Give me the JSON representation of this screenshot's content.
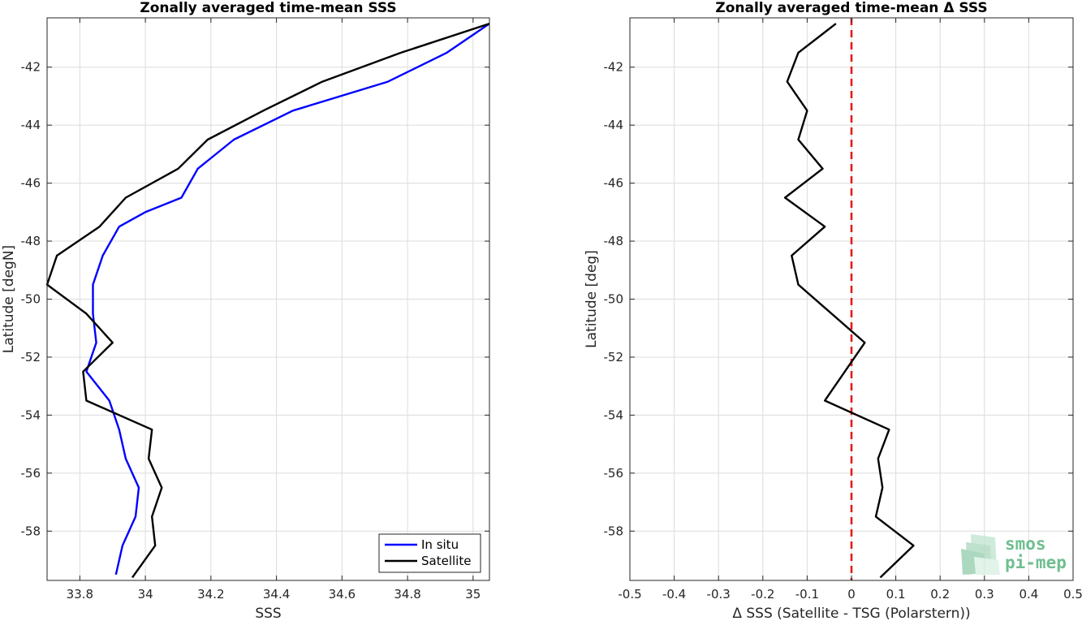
{
  "chart_data": [
    {
      "type": "line",
      "title": "Zonally averaged time-mean SSS",
      "xlabel": "SSS",
      "ylabel": "Latitude [degN]",
      "xlim": [
        33.7,
        35.05
      ],
      "ylim": [
        -59.7,
        -40.3
      ],
      "xticks": [
        33.8,
        34.0,
        34.2,
        34.4,
        34.6,
        34.8,
        35.0
      ],
      "xtick_labels": [
        "33.8",
        "34",
        "34.2",
        "34.4",
        "34.6",
        "34.8",
        "35"
      ],
      "yticks": [
        -42,
        -44,
        -46,
        -48,
        -50,
        -52,
        -54,
        -56,
        -58
      ],
      "ytick_labels": [
        "-42",
        "-44",
        "-46",
        "-48",
        "-50",
        "-52",
        "-54",
        "-56",
        "-58"
      ],
      "grid": true,
      "legend": {
        "location": "bottom-right",
        "entries": [
          "In situ",
          "Satellite"
        ]
      },
      "series": [
        {
          "name": "In situ",
          "color": "#0000ff",
          "points": [
            [
              33.91,
              -59.5
            ],
            [
              33.93,
              -58.5
            ],
            [
              33.97,
              -57.5
            ],
            [
              33.98,
              -56.5
            ],
            [
              33.94,
              -55.5
            ],
            [
              33.92,
              -54.5
            ],
            [
              33.89,
              -53.5
            ],
            [
              33.82,
              -52.5
            ],
            [
              33.85,
              -51.5
            ],
            [
              33.84,
              -50.5
            ],
            [
              33.84,
              -49.5
            ],
            [
              33.87,
              -48.5
            ],
            [
              33.92,
              -47.5
            ],
            [
              34.0,
              -47.0
            ],
            [
              34.11,
              -46.5
            ],
            [
              34.16,
              -45.5
            ],
            [
              34.27,
              -44.5
            ],
            [
              34.45,
              -43.5
            ],
            [
              34.74,
              -42.5
            ],
            [
              34.92,
              -41.5
            ],
            [
              35.05,
              -40.5
            ]
          ]
        },
        {
          "name": "Satellite",
          "color": "#000000",
          "points": [
            [
              33.96,
              -59.6
            ],
            [
              34.03,
              -58.5
            ],
            [
              34.02,
              -57.5
            ],
            [
              34.05,
              -56.5
            ],
            [
              34.01,
              -55.5
            ],
            [
              34.02,
              -54.5
            ],
            [
              33.82,
              -53.5
            ],
            [
              33.81,
              -52.5
            ],
            [
              33.9,
              -51.5
            ],
            [
              33.82,
              -50.5
            ],
            [
              33.7,
              -49.5
            ],
            [
              33.73,
              -48.5
            ],
            [
              33.86,
              -47.5
            ],
            [
              33.94,
              -46.5
            ],
            [
              34.1,
              -45.5
            ],
            [
              34.19,
              -44.5
            ],
            [
              34.36,
              -43.5
            ],
            [
              34.54,
              -42.5
            ],
            [
              34.78,
              -41.5
            ],
            [
              35.05,
              -40.5
            ]
          ]
        }
      ]
    },
    {
      "type": "line",
      "title": "Zonally averaged time-mean Δ SSS",
      "xlabel": "Δ SSS (Satellite - TSG (Polarstern))",
      "ylabel": "Latitude [deg]",
      "xlim": [
        -0.5,
        0.5
      ],
      "ylim": [
        -59.7,
        -40.3
      ],
      "xticks": [
        -0.5,
        -0.4,
        -0.3,
        -0.2,
        -0.1,
        0,
        0.1,
        0.2,
        0.3,
        0.4,
        0.5
      ],
      "xtick_labels": [
        "-0.5",
        "-0.4",
        "-0.3",
        "-0.2",
        "-0.1",
        "0",
        "0.1",
        "0.2",
        "0.3",
        "0.4",
        "0.5"
      ],
      "yticks": [
        -42,
        -44,
        -46,
        -48,
        -50,
        -52,
        -54,
        -56,
        -58
      ],
      "ytick_labels": [
        "-42",
        "-44",
        "-46",
        "-48",
        "-50",
        "-52",
        "-54",
        "-56",
        "-58"
      ],
      "grid": true,
      "reference_line": {
        "x": 0,
        "color": "#e41a1c",
        "style": "dashed"
      },
      "series": [
        {
          "color": "#000000",
          "points": [
            [
              -0.035,
              -40.5
            ],
            [
              -0.12,
              -41.5
            ],
            [
              -0.145,
              -42.5
            ],
            [
              -0.1,
              -43.5
            ],
            [
              -0.12,
              -44.5
            ],
            [
              -0.065,
              -45.5
            ],
            [
              -0.15,
              -46.5
            ],
            [
              -0.06,
              -47.5
            ],
            [
              -0.135,
              -48.5
            ],
            [
              -0.12,
              -49.5
            ],
            [
              0.03,
              -51.5
            ],
            [
              -0.06,
              -53.5
            ],
            [
              0.085,
              -54.5
            ],
            [
              0.06,
              -55.5
            ],
            [
              0.07,
              -56.5
            ],
            [
              0.055,
              -57.5
            ],
            [
              0.14,
              -58.5
            ],
            [
              0.065,
              -59.6
            ]
          ]
        }
      ]
    }
  ],
  "logo": {
    "line1": "smos",
    "line2": "pi-mep",
    "color": "#6fbf8f"
  }
}
